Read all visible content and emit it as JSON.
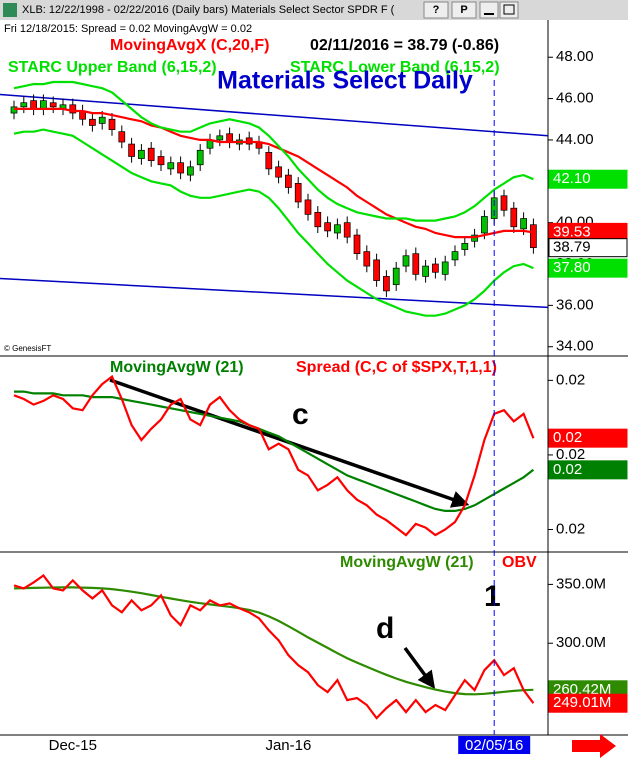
{
  "window": {
    "title": "XLB: 12/22/1998 - 02/22/2016 (Daily bars)   Materials Select Sector SPDR F (",
    "status": "Fri   12/18/2015:  Spread = 0.02  MovingAvgW = 0.02",
    "watermark": "© GenesisFT",
    "buttons": [
      "?",
      "P"
    ]
  },
  "chart_data": [
    {
      "type": "candlestick",
      "title": "Materials Select Daily",
      "readout": "02/11/2016 = 38.79 (-0.86)",
      "open": [
        45.3,
        45.6,
        45.9,
        45.5,
        45.8,
        45.5,
        45.7,
        45.4,
        45.0,
        44.8,
        45.0,
        44.4,
        43.8,
        43.1,
        43.6,
        43.2,
        42.6,
        42.9,
        42.3,
        42.8,
        43.6,
        44.0,
        44.3,
        43.8,
        44.1,
        43.9,
        43.4,
        42.7,
        42.3,
        41.9,
        41.1,
        40.5,
        40.0,
        39.5,
        40.0,
        39.4,
        38.6,
        38.2,
        37.4,
        37.0,
        37.9,
        38.5,
        37.4,
        38.0,
        37.5,
        38.2,
        38.7,
        39.1,
        39.5,
        40.2,
        41.3,
        40.7,
        39.7,
        39.9
      ],
      "high": [
        45.9,
        46.1,
        46.2,
        46.2,
        46.1,
        46.0,
        46.0,
        45.7,
        45.3,
        45.4,
        45.3,
        44.7,
        44.1,
        43.8,
        43.9,
        43.5,
        43.2,
        43.2,
        43.0,
        43.8,
        44.3,
        44.5,
        44.6,
        44.3,
        44.4,
        44.2,
        43.7,
        43.0,
        42.6,
        42.2,
        41.4,
        40.8,
        40.3,
        40.2,
        40.3,
        39.7,
        38.9,
        38.5,
        37.7,
        38.1,
        38.7,
        38.8,
        38.2,
        38.3,
        38.4,
        38.9,
        39.3,
        39.7,
        40.6,
        41.5,
        41.6,
        41.0,
        40.5,
        40.2
      ],
      "low": [
        45.0,
        45.3,
        45.2,
        45.2,
        45.3,
        45.2,
        45.0,
        44.7,
        44.4,
        44.5,
        44.2,
        43.6,
        42.9,
        42.8,
        42.7,
        42.5,
        42.3,
        42.1,
        42.0,
        42.5,
        43.3,
        43.7,
        43.6,
        43.5,
        43.5,
        43.3,
        42.3,
        41.9,
        41.4,
        40.7,
        40.1,
        39.5,
        39.3,
        39.2,
        39.0,
        38.2,
        37.6,
        36.9,
        36.4,
        36.7,
        37.6,
        37.2,
        37.1,
        37.3,
        37.2,
        37.9,
        38.4,
        38.8,
        39.2,
        39.9,
        40.3,
        39.5,
        39.4,
        38.5
      ],
      "close": [
        45.6,
        45.8,
        45.5,
        45.9,
        45.6,
        45.7,
        45.3,
        45.0,
        44.7,
        45.1,
        44.5,
        43.9,
        43.2,
        43.5,
        43.0,
        42.8,
        42.9,
        42.4,
        42.7,
        43.5,
        44.0,
        44.2,
        43.9,
        44.0,
        43.8,
        43.6,
        42.6,
        42.2,
        41.7,
        41.0,
        40.4,
        39.8,
        39.6,
        39.9,
        39.3,
        38.5,
        37.9,
        37.2,
        36.7,
        37.8,
        38.4,
        37.5,
        37.9,
        37.6,
        38.1,
        38.6,
        39.0,
        39.4,
        40.3,
        41.2,
        40.6,
        39.8,
        40.2,
        38.79
      ],
      "close_label": "38.79",
      "up_color": "#00c000",
      "down_color": "#ff0000",
      "series": [
        {
          "name": "MovingAvgX (C,20,F)",
          "color": "#ff0000",
          "last_label": "39.53",
          "values": [
            45.5,
            45.5,
            45.5,
            45.5,
            45.5,
            45.5,
            45.4,
            45.4,
            45.3,
            45.3,
            45.2,
            45.1,
            45.0,
            44.9,
            44.7,
            44.6,
            44.4,
            44.2,
            44.1,
            44.0,
            44.0,
            43.9,
            43.9,
            43.9,
            43.9,
            43.9,
            43.8,
            43.6,
            43.4,
            43.2,
            42.9,
            42.6,
            42.3,
            42.0,
            41.7,
            41.3,
            41.0,
            40.7,
            40.4,
            40.2,
            40.0,
            39.8,
            39.7,
            39.5,
            39.4,
            39.3,
            39.3,
            39.3,
            39.4,
            39.5,
            39.6,
            39.6,
            39.6,
            39.53
          ]
        },
        {
          "name": "STARC Upper Band (6,15,2)",
          "color": "#00e000",
          "last_label": "42.10",
          "values": [
            46.5,
            46.6,
            46.7,
            46.7,
            46.8,
            46.8,
            46.8,
            46.7,
            46.6,
            46.5,
            46.3,
            45.9,
            45.5,
            45.1,
            44.8,
            44.6,
            44.5,
            44.4,
            44.4,
            44.6,
            44.8,
            44.9,
            45.0,
            44.9,
            44.8,
            44.6,
            44.2,
            43.7,
            43.2,
            42.6,
            42.1,
            41.6,
            41.2,
            40.9,
            40.7,
            40.5,
            40.4,
            40.3,
            40.2,
            40.2,
            40.2,
            40.1,
            40.1,
            40.1,
            40.2,
            40.3,
            40.5,
            40.8,
            41.2,
            41.6,
            41.9,
            42.2,
            42.3,
            42.1
          ]
        },
        {
          "name": "STARC Lower Band (6,15,2)",
          "color": "#00e000",
          "last_label": "37.80",
          "values": [
            44.3,
            44.4,
            44.4,
            44.5,
            44.4,
            44.3,
            44.2,
            43.9,
            43.6,
            43.3,
            43.0,
            42.7,
            42.4,
            42.2,
            42.0,
            41.9,
            41.8,
            41.5,
            41.3,
            41.2,
            41.2,
            41.3,
            41.4,
            41.5,
            41.6,
            41.5,
            41.2,
            40.7,
            40.1,
            39.5,
            39.0,
            38.5,
            38.0,
            37.6,
            37.2,
            36.9,
            36.6,
            36.3,
            36.1,
            35.9,
            35.7,
            35.6,
            35.5,
            35.5,
            35.6,
            35.8,
            36.0,
            36.3,
            36.7,
            37.2,
            37.6,
            37.9,
            38.0,
            37.8
          ]
        }
      ],
      "trendlines": [
        {
          "start": 46.2,
          "end": 44.2,
          "color": "#0000c0"
        },
        {
          "start": 37.3,
          "end": 35.9,
          "color": "#0000c0"
        }
      ],
      "ylim": [
        33.6,
        49.8
      ],
      "yticks": [
        {
          "value": 48,
          "label": "48.00"
        },
        {
          "value": 46,
          "label": "46.00"
        },
        {
          "value": 44,
          "label": "44.00"
        },
        {
          "value": 42,
          "label": "42.00"
        },
        {
          "value": 40,
          "label": "40.00"
        },
        {
          "value": 38,
          "label": "38.00"
        },
        {
          "value": 36,
          "label": "36.00"
        },
        {
          "value": 34,
          "label": "34.00"
        }
      ]
    },
    {
      "type": "line",
      "annotations": [
        {
          "text": "c"
        }
      ],
      "series": [
        {
          "name": "MovingAvgW (21)",
          "color": "#008000",
          "last_label": "0.02",
          "values": [
            0.0234,
            0.0234,
            0.0233,
            0.0233,
            0.0233,
            0.0232,
            0.0232,
            0.0232,
            0.0231,
            0.0231,
            0.0231,
            0.023,
            0.0229,
            0.0228,
            0.0227,
            0.0226,
            0.0225,
            0.0224,
            0.0223,
            0.0222,
            0.0221,
            0.022,
            0.0219,
            0.0218,
            0.0216,
            0.0214,
            0.0212,
            0.021,
            0.0207,
            0.0204,
            0.0201,
            0.0198,
            0.0195,
            0.0192,
            0.0189,
            0.0187,
            0.0185,
            0.0183,
            0.0181,
            0.0179,
            0.0177,
            0.0175,
            0.0173,
            0.0171,
            0.017,
            0.017,
            0.0171,
            0.0173,
            0.0176,
            0.0179,
            0.0182,
            0.0185,
            0.0188,
            0.0192
          ]
        },
        {
          "name": "Spread (C,C of $SPX,T,1,1)",
          "color": "#ff0000",
          "last_label": "0.02",
          "values": [
            0.0232,
            0.023,
            0.0227,
            0.0229,
            0.0232,
            0.023,
            0.0225,
            0.0224,
            0.0232,
            0.0238,
            0.0242,
            0.023,
            0.0216,
            0.0208,
            0.0214,
            0.0219,
            0.0227,
            0.023,
            0.0219,
            0.0216,
            0.0227,
            0.0231,
            0.0224,
            0.0219,
            0.0216,
            0.0214,
            0.0203,
            0.0206,
            0.0203,
            0.0192,
            0.0189,
            0.0181,
            0.0184,
            0.0188,
            0.0181,
            0.0176,
            0.0173,
            0.0168,
            0.0165,
            0.0161,
            0.0157,
            0.0163,
            0.0161,
            0.0157,
            0.016,
            0.0164,
            0.0173,
            0.0189,
            0.0208,
            0.0222,
            0.0224,
            0.0218,
            0.0222,
            0.0209
          ]
        }
      ],
      "ylim": [
        0.0149,
        0.0252
      ],
      "yticks": [
        {
          "value": 0.024,
          "label": "0.02"
        },
        {
          "value": 0.02,
          "label": "0.02"
        },
        {
          "value": 0.016,
          "label": "0.02"
        }
      ]
    },
    {
      "type": "line",
      "annotations": [
        {
          "text": "d"
        },
        {
          "text": "1"
        }
      ],
      "categories": [
        null,
        null,
        null,
        null,
        null,
        null,
        "Dec-15",
        null,
        null,
        null,
        null,
        null,
        null,
        null,
        null,
        null,
        null,
        null,
        null,
        null,
        null,
        null,
        null,
        null,
        null,
        null,
        null,
        null,
        "Jan-16",
        null,
        null,
        null,
        null,
        null,
        null,
        null,
        null,
        null,
        null,
        null,
        null,
        null,
        null,
        null,
        null,
        null,
        null,
        null,
        null,
        "02/05/16",
        null,
        null,
        null,
        null
      ],
      "highlight": "02/05/16",
      "series": [
        {
          "name": "MovingAvgW (21)",
          "color": "#2e8b00",
          "last_label": "260.42M",
          "values": [
            346.6,
            346.8,
            347.0,
            347.2,
            347.4,
            347.5,
            347.5,
            347.3,
            347.0,
            346.6,
            346.0,
            345.0,
            343.8,
            342.5,
            341.0,
            339.5,
            338.0,
            336.6,
            335.2,
            334.0,
            333.0,
            332.0,
            331.0,
            329.8,
            328.3,
            326.0,
            322.8,
            319.0,
            314.5,
            309.8,
            305.0,
            300.5,
            296.0,
            291.5,
            287.3,
            283.5,
            280.0,
            276.5,
            273.2,
            270.0,
            267.2,
            264.8,
            262.6,
            260.6,
            258.9,
            257.6,
            256.8,
            256.6,
            257.0,
            257.8,
            258.7,
            259.5,
            260.1,
            260.42
          ]
        },
        {
          "name": "OBV",
          "color": "#ff0000",
          "last_label": "249.01M",
          "values": [
            349.2,
            346.6,
            351.7,
            357.6,
            346.6,
            344.9,
            353.4,
            344.9,
            338.1,
            344.9,
            332.2,
            326.3,
            336.4,
            328.0,
            332.2,
            340.7,
            323.7,
            315.3,
            332.2,
            328.0,
            336.4,
            332.2,
            333.9,
            329.7,
            326.3,
            321.2,
            311.0,
            302.5,
            289.8,
            281.4,
            275.4,
            264.4,
            258.5,
            268.6,
            251.7,
            253.4,
            247.5,
            236.4,
            244.9,
            251.7,
            241.5,
            251.7,
            241.5,
            247.5,
            243.2,
            255.9,
            268.6,
            260.2,
            277.1,
            285.6,
            272.9,
            278.8,
            260.2,
            249.01
          ]
        }
      ],
      "ylim": [
        222,
        375
      ],
      "yticks": [
        {
          "value": 350,
          "label": "350.0M"
        },
        {
          "value": 300,
          "label": "300.0M"
        }
      ]
    }
  ]
}
